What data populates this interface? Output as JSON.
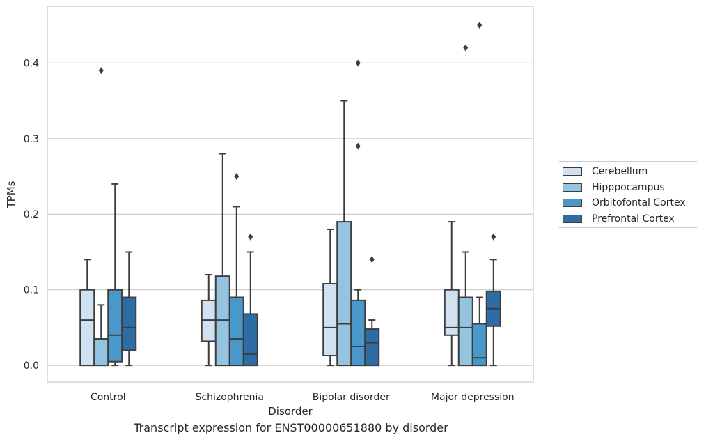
{
  "chart_data": {
    "type": "box",
    "caption": "Transcript expression for ENST00000651880 by disorder",
    "xlabel": "Disorder",
    "ylabel": "TPMs",
    "ylim": [
      -0.022,
      0.475
    ],
    "yticks": [
      0.0,
      0.1,
      0.2,
      0.3,
      0.4
    ],
    "ytick_labels": [
      "0.0",
      "0.1",
      "0.2",
      "0.3",
      "0.4"
    ],
    "grid": "horizontal",
    "legend_position": "right",
    "categories": [
      "Control",
      "Schizophrenia",
      "Bipolar disorder",
      "Major depression"
    ],
    "series": [
      {
        "name": "Cerebellum",
        "color": "#d0e1f2",
        "boxes": [
          {
            "whislo": 0.0,
            "q1": 0.0,
            "med": 0.06,
            "q3": 0.1,
            "whishi": 0.14,
            "fliers": []
          },
          {
            "whislo": 0.0,
            "q1": 0.032,
            "med": 0.06,
            "q3": 0.086,
            "whishi": 0.12,
            "fliers": []
          },
          {
            "whislo": 0.0,
            "q1": 0.013,
            "med": 0.05,
            "q3": 0.108,
            "whishi": 0.18,
            "fliers": []
          },
          {
            "whislo": 0.0,
            "q1": 0.04,
            "med": 0.05,
            "q3": 0.1,
            "whishi": 0.19,
            "fliers": []
          }
        ]
      },
      {
        "name": "Hipppocampus",
        "color": "#94c4df",
        "boxes": [
          {
            "whislo": 0.0,
            "q1": 0.0,
            "med": 0.035,
            "q3": 0.035,
            "whishi": 0.08,
            "fliers": [
              0.39
            ]
          },
          {
            "whislo": 0.0,
            "q1": 0.0,
            "med": 0.06,
            "q3": 0.118,
            "whishi": 0.28,
            "fliers": []
          },
          {
            "whislo": 0.0,
            "q1": 0.0,
            "med": 0.055,
            "q3": 0.19,
            "whishi": 0.35,
            "fliers": []
          },
          {
            "whislo": 0.0,
            "q1": 0.0,
            "med": 0.05,
            "q3": 0.09,
            "whishi": 0.15,
            "fliers": [
              0.42
            ]
          }
        ]
      },
      {
        "name": "Orbitofontal Cortex",
        "color": "#4a98c9",
        "boxes": [
          {
            "whislo": 0.0,
            "q1": 0.005,
            "med": 0.04,
            "q3": 0.1,
            "whishi": 0.24,
            "fliers": []
          },
          {
            "whislo": 0.0,
            "q1": 0.0,
            "med": 0.035,
            "q3": 0.09,
            "whishi": 0.21,
            "fliers": [
              0.25
            ]
          },
          {
            "whislo": 0.0,
            "q1": 0.0,
            "med": 0.025,
            "q3": 0.086,
            "whishi": 0.1,
            "fliers": [
              0.29,
              0.4
            ]
          },
          {
            "whislo": 0.0,
            "q1": 0.0,
            "med": 0.01,
            "q3": 0.055,
            "whishi": 0.09,
            "fliers": [
              0.45
            ]
          }
        ]
      },
      {
        "name": "Prefrontal Cortex",
        "color": "#2e6da4",
        "boxes": [
          {
            "whislo": 0.0,
            "q1": 0.02,
            "med": 0.05,
            "q3": 0.09,
            "whishi": 0.15,
            "fliers": []
          },
          {
            "whislo": 0.0,
            "q1": 0.0,
            "med": 0.015,
            "q3": 0.068,
            "whishi": 0.15,
            "fliers": [
              0.17
            ]
          },
          {
            "whislo": 0.0,
            "q1": 0.0,
            "med": 0.03,
            "q3": 0.048,
            "whishi": 0.06,
            "fliers": [
              0.14
            ]
          },
          {
            "whislo": 0.0,
            "q1": 0.052,
            "med": 0.075,
            "q3": 0.098,
            "whishi": 0.14,
            "fliers": [
              0.17
            ]
          }
        ]
      }
    ]
  }
}
